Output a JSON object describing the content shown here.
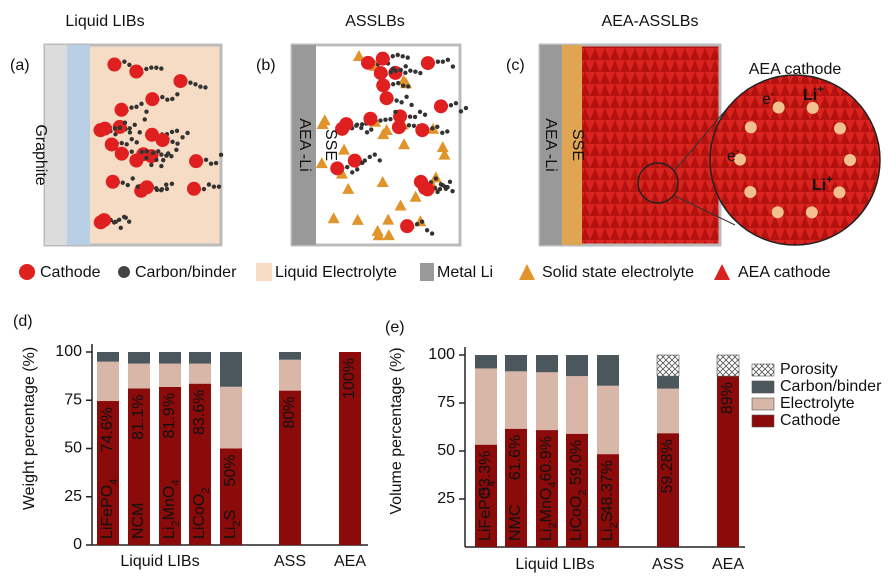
{
  "diagram": {
    "panels": [
      {
        "label": "(a)",
        "title": "Liquid LIBs",
        "texts": [
          "Graphite"
        ]
      },
      {
        "label": "(b)",
        "title": "ASSLBs",
        "texts": [
          "SSE",
          "AEA -Li"
        ]
      },
      {
        "label": "(c)",
        "title": "AEA-ASSLBs",
        "texts": [
          "SSE",
          "AEA -Li"
        ]
      }
    ],
    "zoom": {
      "title": "AEA cathode",
      "electron": "e-",
      "ion": "Li+"
    },
    "legend": [
      "Cathode",
      "Carbon/binder",
      "Liquid Electrolyte",
      "Metal Li",
      "Solid state electrolyte",
      "AEA cathode"
    ]
  },
  "chart_data": [
    {
      "type": "stacked-bar",
      "panel_label": "(d)",
      "y_label": "Weight percentage (%)",
      "group_label": "Liquid LIBs",
      "categories": [
        "LiFePO4",
        "NCM",
        "Li2MnO4",
        "LiCoO2",
        "Li2S",
        "ASS",
        "AEA"
      ],
      "ylim": [
        0,
        100
      ],
      "yticks": [
        0,
        25,
        50,
        75,
        100
      ],
      "series": [
        {
          "color": "#8b0a0a",
          "values": [
            74.6,
            81.1,
            81.9,
            83.6,
            50,
            80,
            100
          ],
          "value_labels": [
            "74.6%",
            "81.1%",
            "81.9%",
            "83.6%",
            "50%",
            "80%",
            "100%"
          ]
        },
        {
          "color": "#d9b7a8",
          "values": [
            20.4,
            12.9,
            12.1,
            10.4,
            32,
            16,
            0
          ]
        },
        {
          "color": "#4b575c",
          "values": [
            5,
            6,
            6,
            6,
            18,
            4,
            0
          ]
        }
      ]
    },
    {
      "type": "stacked-bar",
      "panel_label": "(e)",
      "y_label": "Volume percentage (%)",
      "group_label": "Liquid LIBs",
      "categories": [
        "LiFePO4",
        "NMC",
        "Li2MnO4",
        "LiCoO2",
        "Li2S",
        "ASS",
        "AEA"
      ],
      "ylim": [
        0,
        100
      ],
      "yticks": [
        25,
        50,
        75,
        100
      ],
      "legend": "upper right",
      "series": [
        {
          "name": "Cathode",
          "color": "#8b0a0a",
          "values": [
            53.3,
            61.6,
            60.9,
            59.0,
            48.37,
            59.28,
            89
          ],
          "value_labels": [
            "53.3%",
            "61.6%",
            "60.9%",
            "59.0%",
            "48.37%",
            "59.28%",
            "89%"
          ]
        },
        {
          "name": "Electrolyte",
          "color": "#d9b7a8",
          "values": [
            39.7,
            29.9,
            30.1,
            30,
            35.63,
            23.22,
            0
          ]
        },
        {
          "name": "Carbon/binder",
          "color": "#4b575c",
          "values": [
            7,
            8.5,
            9,
            11,
            16,
            6.5,
            0
          ]
        },
        {
          "name": "Porosity",
          "color": "#ffffff",
          "pattern": "hatch",
          "values": [
            0,
            0,
            0,
            0,
            0,
            11,
            11
          ]
        }
      ]
    }
  ]
}
